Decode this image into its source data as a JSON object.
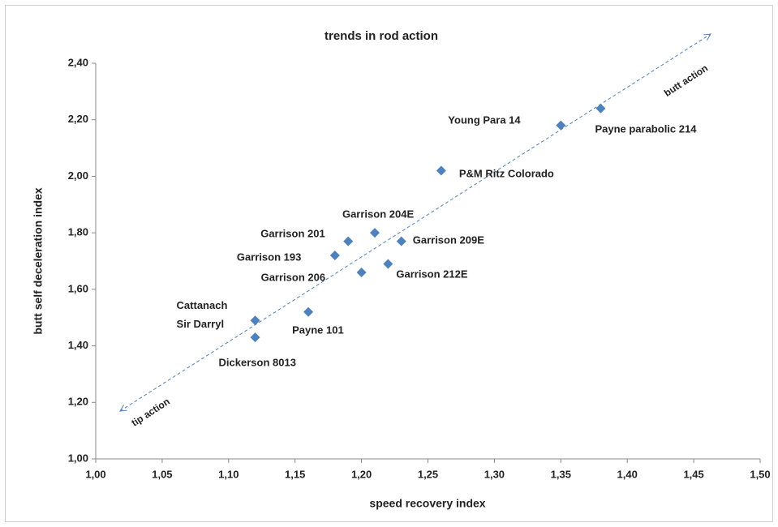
{
  "chart_data": {
    "type": "scatter",
    "title": "trends in rod action",
    "x_label": "speed recovery index",
    "y_label": "butt self deceleration index",
    "annotations": [
      "butt action",
      "tip action"
    ],
    "color": "#4f81bd",
    "labels": [
      "Cattanach\nSir Darryl",
      "Dickerson 8013",
      "Payne 101",
      "Garrison 193",
      "Garrison 201",
      "Garrison 206",
      "Garrison 204E",
      "Garrison 212E",
      "Garrison 209E",
      "P&M Ritz Colorado",
      "Young Para 14",
      "Payne parabolic 214"
    ],
    "x": [
      1.12,
      1.12,
      1.16,
      1.18,
      1.19,
      1.2,
      1.21,
      1.22,
      1.23,
      1.26,
      1.35,
      1.38
    ],
    "values": [
      1.49,
      1.43,
      1.52,
      1.72,
      1.77,
      1.66,
      1.8,
      1.69,
      1.77,
      2.02,
      2.18,
      2.24
    ],
    "xlim": [
      1.0,
      1.5
    ],
    "xticks": [
      {
        "value": 1.0,
        "label": "1,00"
      },
      {
        "value": 1.05,
        "label": "1,05"
      },
      {
        "value": 1.1,
        "label": "1,10"
      },
      {
        "value": 1.15,
        "label": "1,15"
      },
      {
        "value": 1.2,
        "label": "1,20"
      },
      {
        "value": 1.25,
        "label": "1,25"
      },
      {
        "value": 1.3,
        "label": "1,30"
      },
      {
        "value": 1.35,
        "label": "1,35"
      },
      {
        "value": 1.4,
        "label": "1,40"
      },
      {
        "value": 1.45,
        "label": "1,45"
      },
      {
        "value": 1.5,
        "label": "1,50"
      }
    ],
    "ylim": [
      1.0,
      2.4
    ],
    "yticks": [
      {
        "value": 1.0,
        "label": "1,00"
      },
      {
        "value": 1.2,
        "label": "1,20"
      },
      {
        "value": 1.4,
        "label": "1,40"
      },
      {
        "value": 1.6,
        "label": "1,60"
      },
      {
        "value": 1.8,
        "label": "1,80"
      },
      {
        "value": 2.0,
        "label": "2,00"
      },
      {
        "value": 2.2,
        "label": "2,20"
      },
      {
        "value": 2.4,
        "label": "2,40"
      }
    ],
    "grid": false
  }
}
